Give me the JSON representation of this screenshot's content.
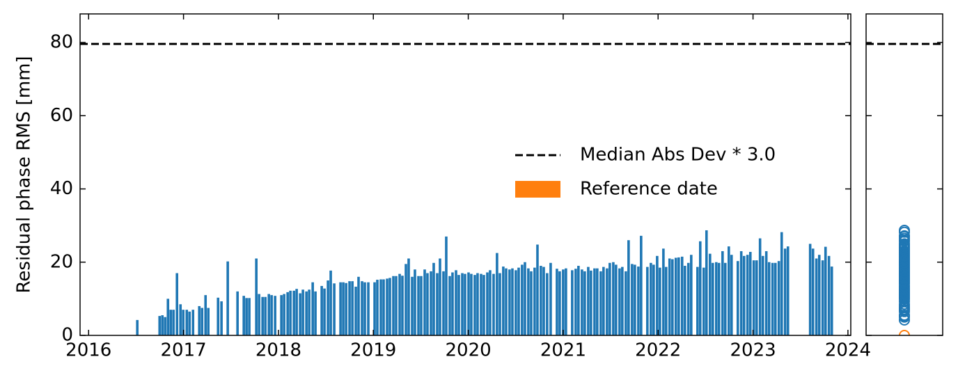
{
  "chart_data": {
    "type": "bar",
    "ylabel": "Residual phase RMS [mm]",
    "color": "#1f77b4",
    "x": [
      2016.513,
      2016.748,
      2016.777,
      2016.806,
      2016.836,
      2016.865,
      2016.894,
      2016.931,
      2016.968,
      2016.997,
      2017.034,
      2017.063,
      2017.1,
      2017.166,
      2017.195,
      2017.232,
      2017.261,
      2017.364,
      2017.4,
      2017.466,
      2017.569,
      2017.635,
      2017.664,
      2017.693,
      2017.767,
      2017.796,
      2017.833,
      2017.862,
      2017.899,
      2017.928,
      2017.965,
      2018.031,
      2018.06,
      2018.097,
      2018.126,
      2018.163,
      2018.192,
      2018.229,
      2018.258,
      2018.295,
      2018.324,
      2018.361,
      2018.39,
      2018.456,
      2018.485,
      2018.522,
      2018.551,
      2018.588,
      2018.654,
      2018.683,
      2018.713,
      2018.749,
      2018.779,
      2018.815,
      2018.844,
      2018.881,
      2018.91,
      2018.947,
      2019.013,
      2019.042,
      2019.079,
      2019.108,
      2019.145,
      2019.174,
      2019.211,
      2019.24,
      2019.277,
      2019.306,
      2019.343,
      2019.372,
      2019.409,
      2019.438,
      2019.475,
      2019.504,
      2019.541,
      2019.57,
      2019.607,
      2019.636,
      2019.673,
      2019.702,
      2019.739,
      2019.768,
      2019.805,
      2019.834,
      2019.871,
      2019.9,
      2019.937,
      2019.966,
      2020.003,
      2020.032,
      2020.069,
      2020.098,
      2020.135,
      2020.164,
      2020.201,
      2020.23,
      2020.267,
      2020.303,
      2020.333,
      2020.369,
      2020.399,
      2020.435,
      2020.465,
      2020.501,
      2020.531,
      2020.567,
      2020.597,
      2020.633,
      2020.663,
      2020.699,
      2020.729,
      2020.765,
      2020.795,
      2020.831,
      2020.868,
      2020.934,
      2020.963,
      2021.0,
      2021.029,
      2021.095,
      2021.132,
      2021.161,
      2021.198,
      2021.227,
      2021.264,
      2021.293,
      2021.33,
      2021.359,
      2021.396,
      2021.425,
      2021.462,
      2021.491,
      2021.528,
      2021.557,
      2021.594,
      2021.623,
      2021.66,
      2021.689,
      2021.726,
      2021.755,
      2021.792,
      2021.821,
      2021.887,
      2021.924,
      2021.953,
      2021.99,
      2022.019,
      2022.056,
      2022.085,
      2022.121,
      2022.151,
      2022.187,
      2022.217,
      2022.253,
      2022.283,
      2022.319,
      2022.349,
      2022.415,
      2022.444,
      2022.481,
      2022.51,
      2022.547,
      2022.576,
      2022.613,
      2022.642,
      2022.679,
      2022.708,
      2022.745,
      2022.774,
      2022.84,
      2022.876,
      2022.906,
      2022.942,
      2022.972,
      2023.008,
      2023.038,
      2023.074,
      2023.104,
      2023.14,
      2023.17,
      2023.206,
      2023.236,
      2023.272,
      2023.302,
      2023.338,
      2023.368,
      2023.602,
      2023.632,
      2023.668,
      2023.698,
      2023.734,
      2023.764,
      2023.8,
      2023.83
    ],
    "values": [
      4.2,
      5.3,
      5.5,
      5,
      10,
      7,
      7,
      17,
      8.5,
      7,
      7,
      6.5,
      7,
      8,
      7.5,
      11,
      7.5,
      10.3,
      9.3,
      20.2,
      12,
      10.8,
      10.2,
      10.2,
      21,
      11.3,
      10.5,
      10.5,
      11.3,
      11,
      10.8,
      11,
      11.3,
      11.8,
      12.2,
      12.2,
      12.7,
      11.5,
      12.5,
      12,
      12.5,
      14.5,
      12,
      13.5,
      12.8,
      15,
      17.7,
      14.2,
      14.5,
      14.5,
      14.3,
      14.8,
      14.8,
      13.3,
      16,
      14.8,
      14.5,
      14.5,
      14.5,
      15.2,
      15.3,
      15.3,
      15.5,
      15.7,
      16.2,
      16.2,
      16.8,
      16.3,
      19.5,
      21,
      16,
      18,
      16.2,
      16.2,
      18,
      17,
      17.5,
      19.8,
      17,
      21,
      17.5,
      27,
      16.2,
      17.2,
      17.8,
      16.5,
      17,
      16.8,
      17.2,
      16.8,
      16.5,
      17,
      16.8,
      16.5,
      17.2,
      17.8,
      16.8,
      22.5,
      17,
      18.8,
      18.3,
      18,
      18.3,
      17.8,
      18.5,
      19.3,
      20,
      18.3,
      17.5,
      18.5,
      24.8,
      19,
      18.7,
      17,
      19.8,
      18.2,
      17.5,
      18,
      18.3,
      17.8,
      18.2,
      19,
      18,
      17.5,
      18.7,
      17.7,
      18.3,
      18.3,
      17.5,
      18.7,
      18.3,
      19.8,
      20,
      19.3,
      18.3,
      18.7,
      17.5,
      26,
      19.5,
      19.3,
      18.8,
      27.2,
      18.7,
      19.8,
      19.3,
      21.7,
      18.5,
      23.7,
      18.7,
      21,
      20.8,
      21.2,
      21.3,
      21.5,
      19,
      19.8,
      22,
      18.7,
      25.7,
      18.5,
      28.7,
      22.3,
      19.8,
      20,
      19.8,
      23,
      19.8,
      24.3,
      22,
      20.3,
      23,
      21.7,
      22,
      22.8,
      20.5,
      20.5,
      26.5,
      21.7,
      23,
      20,
      19.8,
      19.8,
      20.3,
      28.2,
      23.7,
      24.3,
      25,
      23.7,
      21,
      22,
      20.5,
      24.2,
      21.7,
      18.8
    ],
    "reference": {
      "name": "Reference date",
      "color": "#ff7f0e",
      "values": [
        0
      ]
    },
    "threshold": {
      "name": "Median Abs Dev * 3.0",
      "value": 79.6,
      "color": "#000000"
    },
    "xlim": [
      2015.91,
      2024.03
    ],
    "xticks": [
      2016,
      2017,
      2018,
      2019,
      2020,
      2021,
      2022,
      2023,
      2024
    ],
    "ylim": [
      0,
      87.8
    ],
    "yticks": [
      0,
      20,
      40,
      60,
      80
    ],
    "legend": "center right"
  }
}
